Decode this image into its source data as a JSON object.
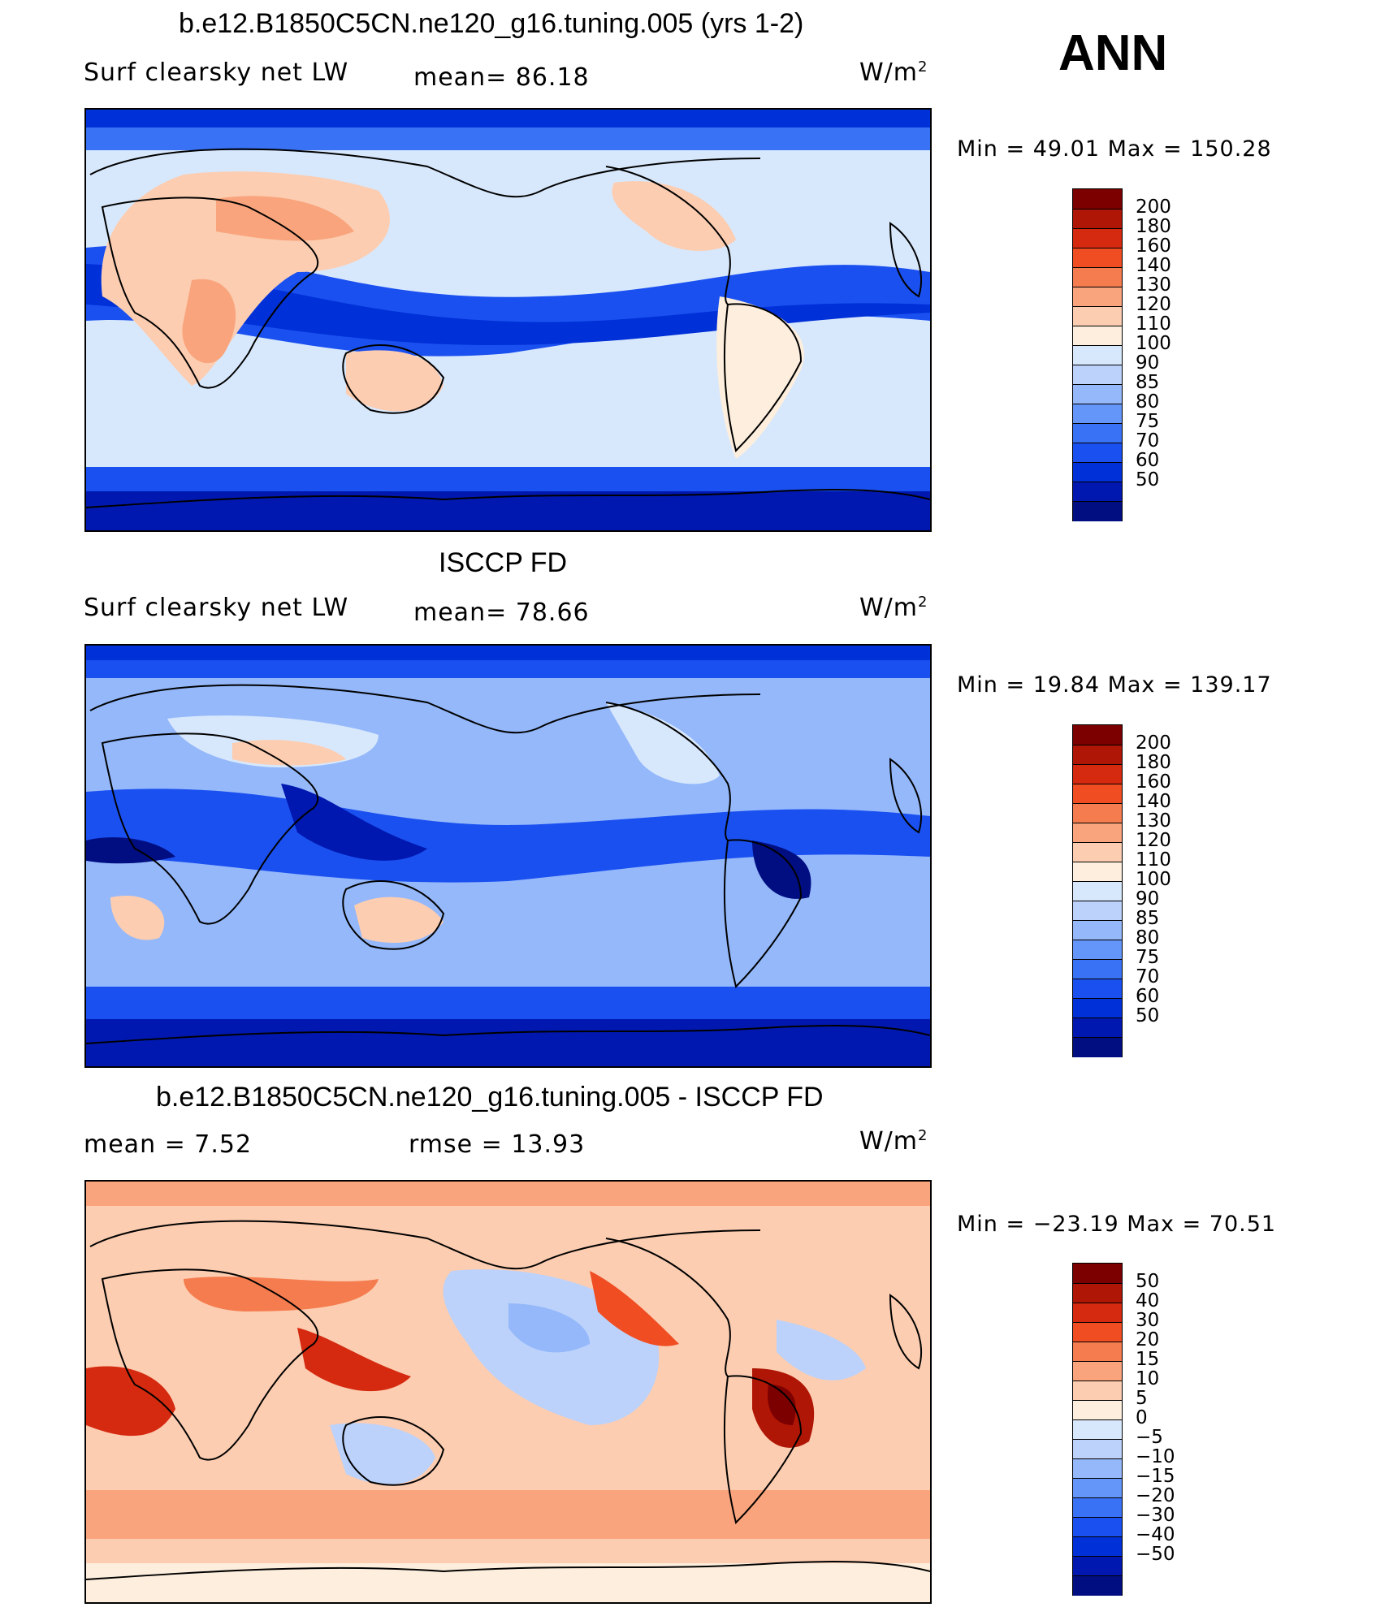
{
  "season": "ANN",
  "colors": {
    "abs": [
      "#000e82",
      "#0018b0",
      "#0030d8",
      "#1a50f0",
      "#3a72f5",
      "#6495f8",
      "#94b8fa",
      "#bcd2fb",
      "#d8e8fc",
      "#fdeedd",
      "#fccdb1",
      "#f9a47c",
      "#f57c4e",
      "#f04d22",
      "#d52a10",
      "#b01605",
      "#7d0000"
    ],
    "diff": [
      "#000e82",
      "#0018b0",
      "#0030d8",
      "#1a50f0",
      "#3a72f5",
      "#6495f8",
      "#94b8fa",
      "#bcd2fb",
      "#d8e8fc",
      "#fdeedd",
      "#fccdb1",
      "#f9a47c",
      "#f57c4e",
      "#f04d22",
      "#d52a10",
      "#b01605",
      "#7d0000"
    ]
  },
  "panels": [
    {
      "title": "b.e12.B1850C5CN.ne120_g16.tuning.005 (yrs 1-2)",
      "left_label": "Surf clearsky net LW",
      "center_label": "mean=  86.18",
      "units_base": "W/m",
      "units_sup": "2",
      "minmax": "Min =   49.01 Max = 150.28",
      "levels": [
        "200",
        "180",
        "160",
        "140",
        "130",
        "120",
        "110",
        "100",
        "90",
        "85",
        "80",
        "75",
        "70",
        "60",
        "50"
      ],
      "palette": "abs"
    },
    {
      "title": "ISCCP FD",
      "left_label": "Surf clearsky net LW",
      "center_label": "mean=  78.66",
      "units_base": "W/m",
      "units_sup": "2",
      "minmax": "Min =   19.84 Max = 139.17",
      "levels": [
        "200",
        "180",
        "160",
        "140",
        "130",
        "120",
        "110",
        "100",
        "90",
        "85",
        "80",
        "75",
        "70",
        "60",
        "50"
      ],
      "palette": "abs"
    },
    {
      "title": "b.e12.B1850C5CN.ne120_g16.tuning.005 - ISCCP FD",
      "left_label": "mean =    7.52",
      "center_label": "rmse =   13.93",
      "units_base": "W/m",
      "units_sup": "2",
      "minmax": "Min = −23.19 Max =   70.51",
      "levels": [
        "50",
        "40",
        "30",
        "20",
        "15",
        "10",
        "5",
        "0",
        "−5",
        "−10",
        "−15",
        "−20",
        "−30",
        "−40",
        "−50"
      ],
      "palette": "diff"
    }
  ]
}
